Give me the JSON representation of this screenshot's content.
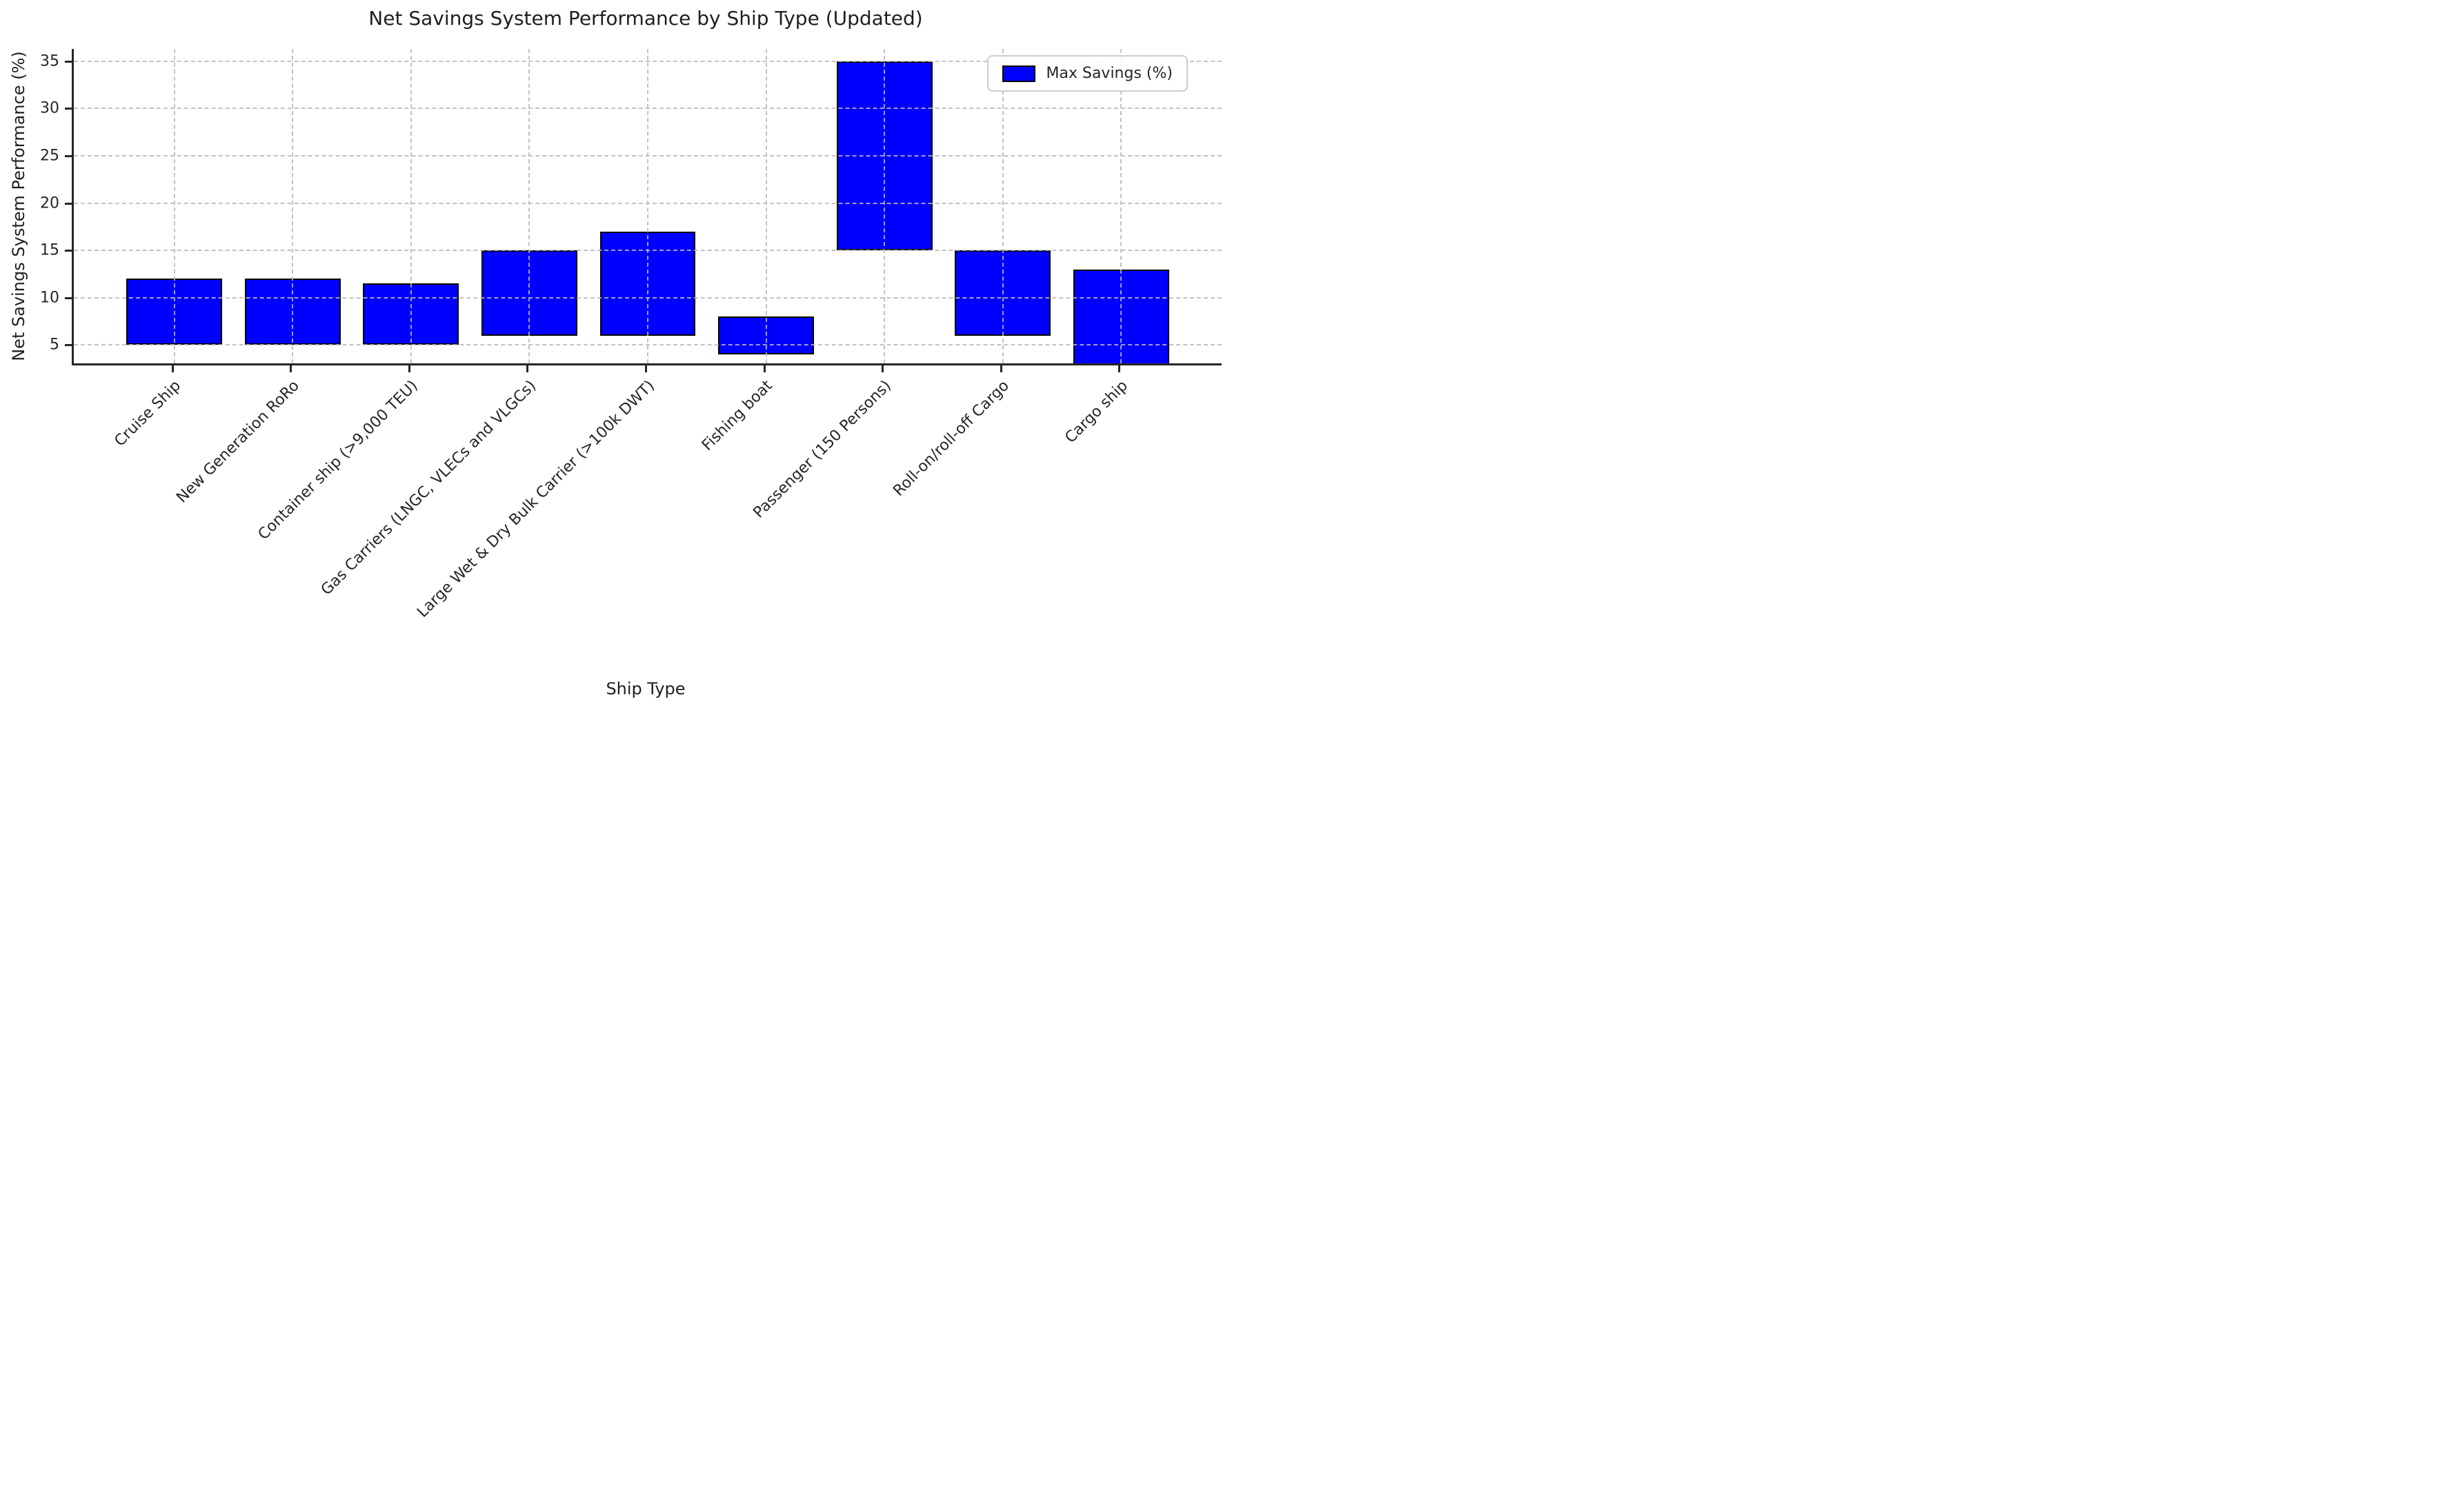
{
  "chart_data": {
    "type": "bar",
    "subtype": "floating-range-bars",
    "title": "Net Savings System Performance by Ship Type (Updated)",
    "xlabel": "Ship Type",
    "ylabel": "Net Savings System Performance (%)",
    "legend": {
      "label": "Max Savings (%)",
      "position": "upper right"
    },
    "categories": [
      "Cruise Ship",
      "New Generation RoRo",
      "Container ship (>9,000 TEU)",
      "Gas Carriers (LNGC, VLECs and VLGCs)",
      "Large Wet & Dry Bulk Carrier (>100k DWT)",
      "Fishing boat",
      "Passenger (150 Persons)",
      "Roll-on/roll-off Cargo",
      "Cargo ship"
    ],
    "series": [
      {
        "name": "Max Savings (%)",
        "ranges": [
          {
            "min": 5,
            "max": 12
          },
          {
            "min": 5,
            "max": 12
          },
          {
            "min": 5,
            "max": 11.5
          },
          {
            "min": 6,
            "max": 15
          },
          {
            "min": 6,
            "max": 17
          },
          {
            "min": 4,
            "max": 8
          },
          {
            "min": 15,
            "max": 35
          },
          {
            "min": 6,
            "max": 15
          },
          {
            "min": 2,
            "max": 13,
            "clipped_at_bottom": true
          }
        ]
      }
    ],
    "yticks": [
      5,
      10,
      15,
      20,
      25,
      30,
      35
    ],
    "ylim": [
      3.05,
      36.3
    ],
    "grid": true,
    "grid_style": "dashed",
    "x_tick_rotation_deg": 45,
    "bar_color": "#0000ff",
    "bar_edge_color": "#000000",
    "spine_color": "#262626",
    "grid_color": "#b9b9b9",
    "text_color": "#262626"
  }
}
